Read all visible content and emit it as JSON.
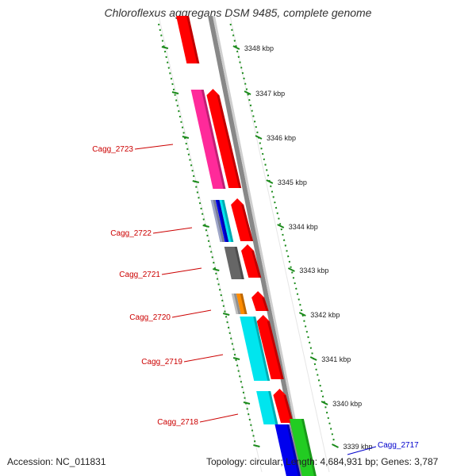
{
  "title": "Chloroflexus aggregans DSM 9485, complete genome",
  "footer": {
    "accession_label": "Accession:",
    "accession": "NC_011831",
    "topology_label": "Topology:",
    "topology": "circular;",
    "length_label": "Length:",
    "length": "4,684,931 bp;",
    "genes_label": "Genes:",
    "genes": "3,787"
  },
  "ticks": [
    "3348 kbp",
    "3347 kbp",
    "3346 kbp",
    "3345 kbp",
    "3344 kbp",
    "3343 kbp",
    "3342 kbp",
    "3341 kbp",
    "3340 kbp",
    "3339 kbp"
  ],
  "genes": [
    {
      "name": "Cagg_2723",
      "color": "#cc0000"
    },
    {
      "name": "Cagg_2722",
      "color": "#cc0000"
    },
    {
      "name": "Cagg_2721",
      "color": "#cc0000"
    },
    {
      "name": "Cagg_2720",
      "color": "#cc0000"
    },
    {
      "name": "Cagg_2719",
      "color": "#cc0000"
    },
    {
      "name": "Cagg_2718",
      "color": "#cc0000"
    },
    {
      "name": "Cagg_2717",
      "color": "#0000cc"
    }
  ],
  "colors": {
    "cds_red": "#ff0000",
    "magenta": "#ff2a9a",
    "cyan": "#00e5ee",
    "blue": "#0000ee",
    "green": "#22cc22",
    "gray": "#666666",
    "orange": "#ff8c00",
    "tick_green": "#1a8a1a",
    "backbone": "#888888"
  }
}
